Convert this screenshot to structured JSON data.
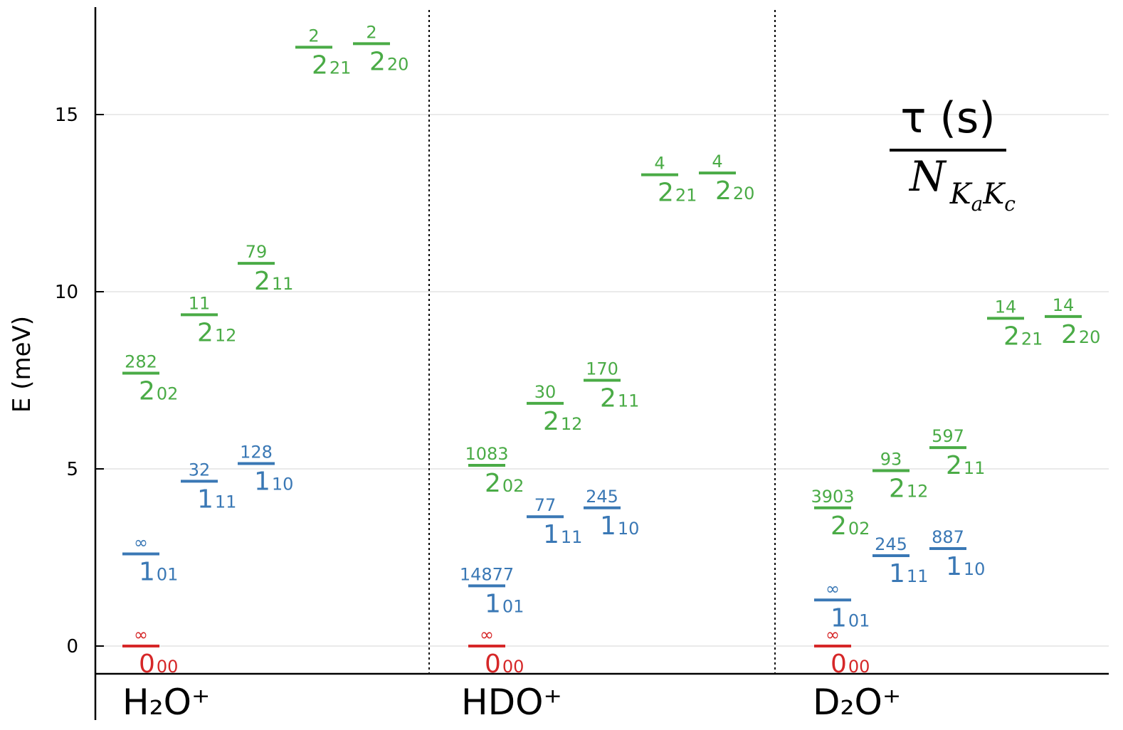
{
  "chart_data": {
    "type": "scatter",
    "ylabel": "E (meV)",
    "ylim": [
      -0.8,
      18.0
    ],
    "yticks": [
      {
        "value": 0,
        "label": "0"
      },
      {
        "value": 5,
        "label": "5"
      },
      {
        "value": 10,
        "label": "10"
      },
      {
        "value": 15,
        "label": "15"
      }
    ],
    "grid": true,
    "colors": {
      "ground": "#d62728",
      "blue": "#3a78b5",
      "green": "#4aab46"
    },
    "legend_note": {
      "numerator": "τ (s)",
      "denominator": "N",
      "sub_1": "K",
      "sub_1a": "a",
      "sub_2": "K",
      "sub_2a": "c"
    },
    "groups": [
      {
        "label": "H₂O⁺",
        "levels": [
          {
            "state": "0",
            "sub": "00",
            "energy": 0.0,
            "tau": "∞",
            "color": "ground",
            "col": 0
          },
          {
            "state": "1",
            "sub": "01",
            "energy": 2.6,
            "tau": "∞",
            "color": "blue",
            "col": 0
          },
          {
            "state": "1",
            "sub": "11",
            "energy": 4.65,
            "tau": "32",
            "color": "blue",
            "col": 1
          },
          {
            "state": "1",
            "sub": "10",
            "energy": 5.15,
            "tau": "128",
            "color": "blue",
            "col": 2
          },
          {
            "state": "2",
            "sub": "02",
            "energy": 7.7,
            "tau": "282",
            "color": "green",
            "col": 0
          },
          {
            "state": "2",
            "sub": "12",
            "energy": 9.35,
            "tau": "11",
            "color": "green",
            "col": 1
          },
          {
            "state": "2",
            "sub": "11",
            "energy": 10.8,
            "tau": "79",
            "color": "green",
            "col": 2
          },
          {
            "state": "2",
            "sub": "21",
            "energy": 16.9,
            "tau": "2",
            "color": "green",
            "col": 3
          },
          {
            "state": "2",
            "sub": "20",
            "energy": 17.0,
            "tau": "2",
            "color": "green",
            "col": 4
          }
        ]
      },
      {
        "label": "HDO⁺",
        "levels": [
          {
            "state": "0",
            "sub": "00",
            "energy": 0.0,
            "tau": "∞",
            "color": "ground",
            "col": 0
          },
          {
            "state": "1",
            "sub": "01",
            "energy": 1.7,
            "tau": "14877",
            "color": "blue",
            "col": 0
          },
          {
            "state": "1",
            "sub": "11",
            "energy": 3.65,
            "tau": "77",
            "color": "blue",
            "col": 1
          },
          {
            "state": "1",
            "sub": "10",
            "energy": 3.9,
            "tau": "245",
            "color": "blue",
            "col": 2
          },
          {
            "state": "2",
            "sub": "02",
            "energy": 5.1,
            "tau": "1083",
            "color": "green",
            "col": 0
          },
          {
            "state": "2",
            "sub": "12",
            "energy": 6.85,
            "tau": "30",
            "color": "green",
            "col": 1
          },
          {
            "state": "2",
            "sub": "11",
            "energy": 7.5,
            "tau": "170",
            "color": "green",
            "col": 2
          },
          {
            "state": "2",
            "sub": "21",
            "energy": 13.3,
            "tau": "4",
            "color": "green",
            "col": 3
          },
          {
            "state": "2",
            "sub": "20",
            "energy": 13.35,
            "tau": "4",
            "color": "green",
            "col": 4
          }
        ]
      },
      {
        "label": "D₂O⁺",
        "levels": [
          {
            "state": "0",
            "sub": "00",
            "energy": 0.0,
            "tau": "∞",
            "color": "ground",
            "col": 0
          },
          {
            "state": "1",
            "sub": "01",
            "energy": 1.3,
            "tau": "∞",
            "color": "blue",
            "col": 0
          },
          {
            "state": "1",
            "sub": "11",
            "energy": 2.55,
            "tau": "245",
            "color": "blue",
            "col": 1
          },
          {
            "state": "1",
            "sub": "10",
            "energy": 2.75,
            "tau": "887",
            "color": "blue",
            "col": 2
          },
          {
            "state": "2",
            "sub": "02",
            "energy": 3.9,
            "tau": "3903",
            "color": "green",
            "col": 0
          },
          {
            "state": "2",
            "sub": "12",
            "energy": 4.95,
            "tau": "93",
            "color": "green",
            "col": 1
          },
          {
            "state": "2",
            "sub": "11",
            "energy": 5.6,
            "tau": "597",
            "color": "green",
            "col": 2
          },
          {
            "state": "2",
            "sub": "21",
            "energy": 9.25,
            "tau": "14",
            "color": "green",
            "col": 3
          },
          {
            "state": "2",
            "sub": "20",
            "energy": 9.3,
            "tau": "14",
            "color": "green",
            "col": 4
          }
        ]
      }
    ]
  }
}
